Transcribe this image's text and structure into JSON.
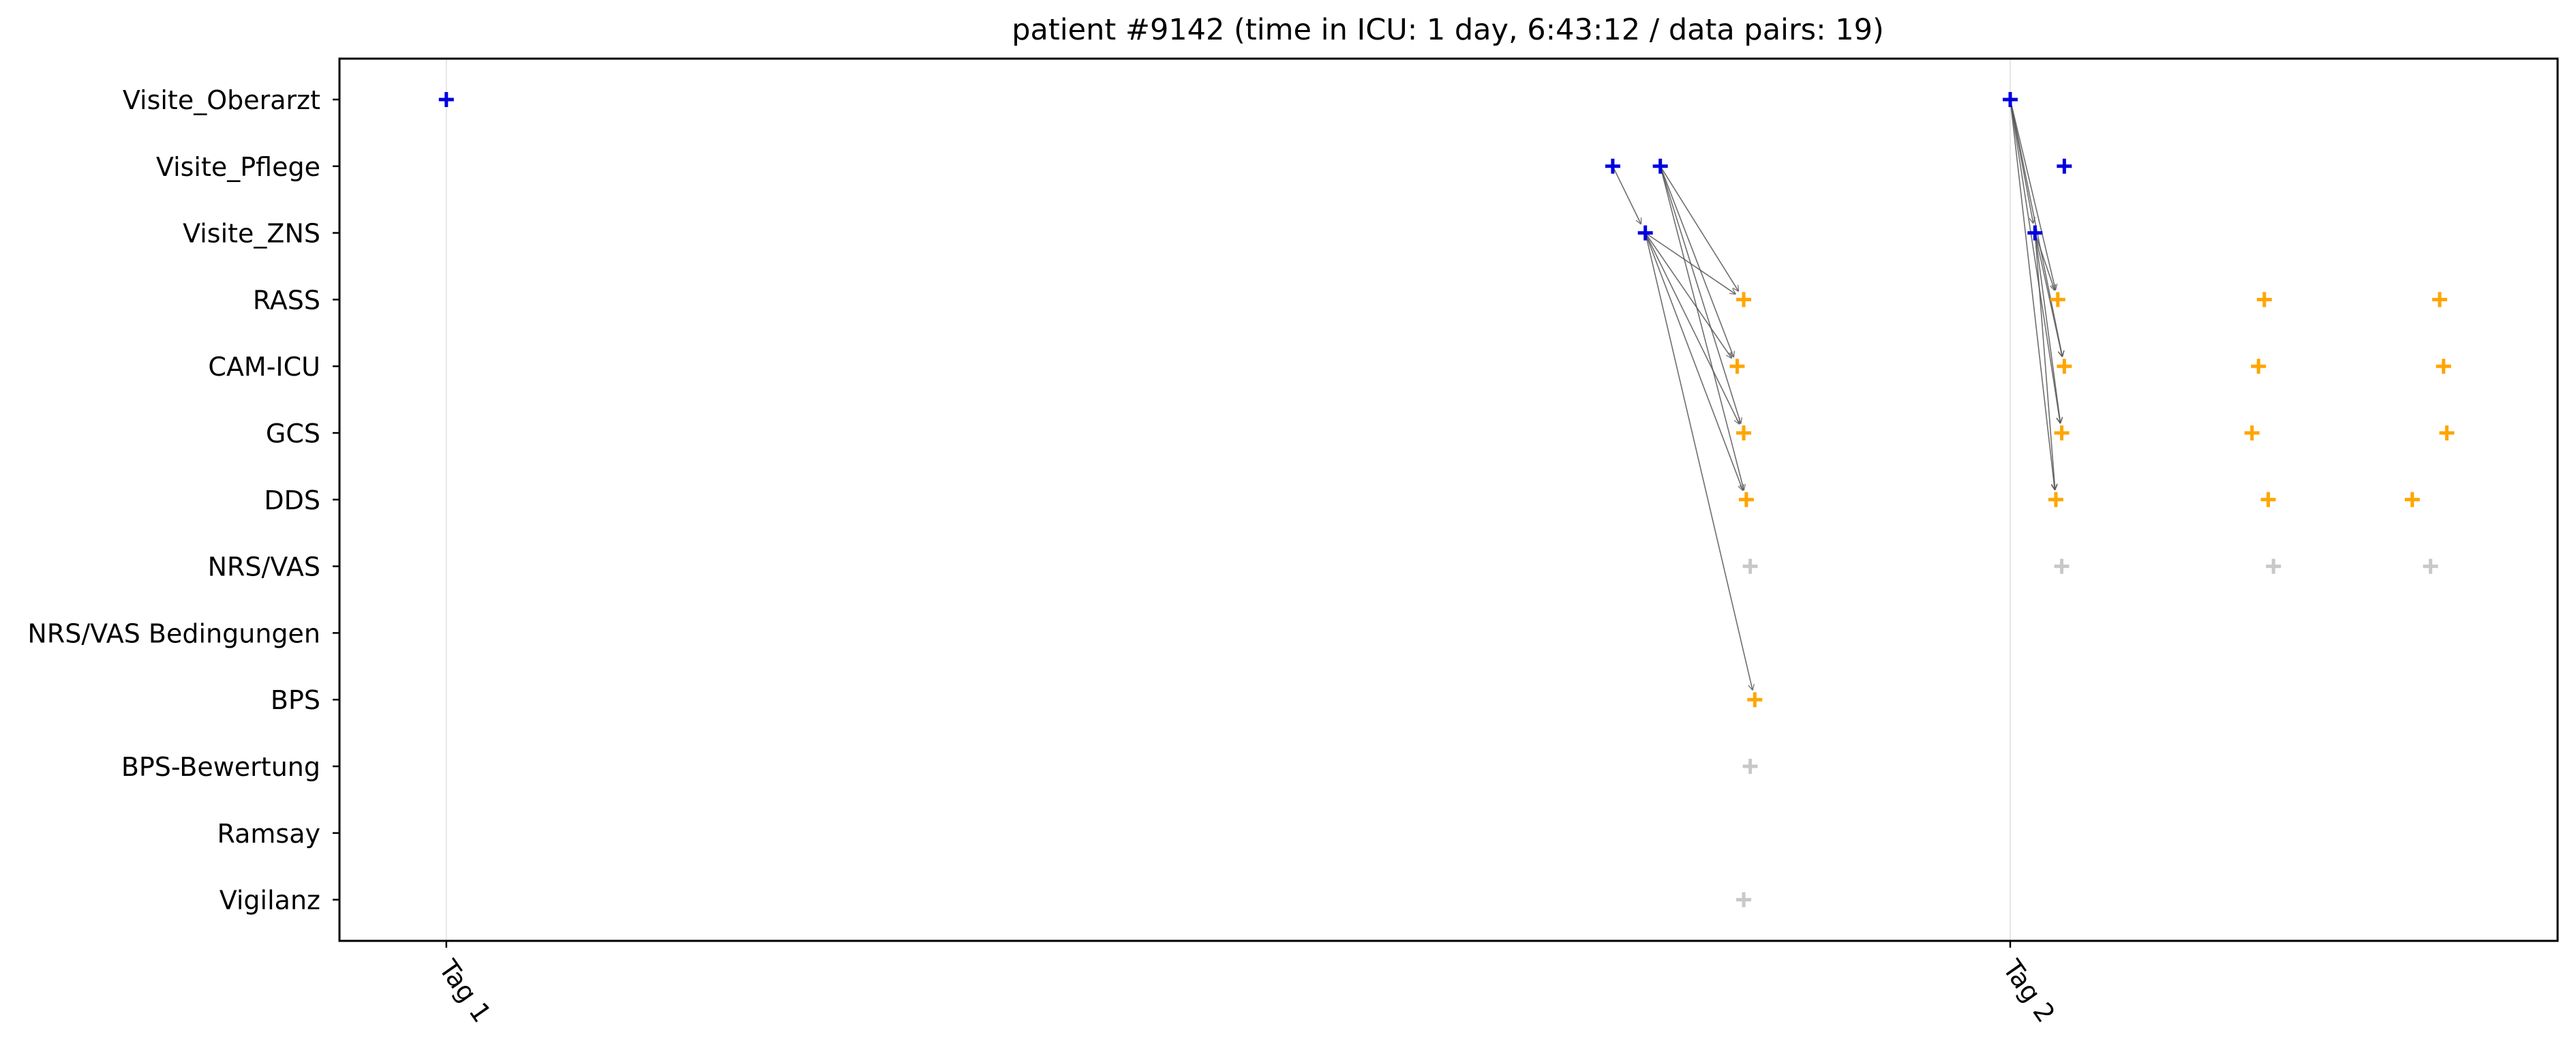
{
  "chart_data": {
    "type": "scatter",
    "title": "patient #9142 (time in ICU: 1 day, 6:43:12 / data pairs: 19)",
    "xlabel": "",
    "ylabel": "",
    "x_unit": "hours",
    "xlim": [
      -1.64,
      32.4
    ],
    "x_ticks": [
      {
        "value": 0,
        "label": "Tag 1"
      },
      {
        "value": 24,
        "label": "Tag 2"
      }
    ],
    "categories": [
      "Visite_Oberarzt",
      "Visite_Pflege",
      "Visite_ZNS",
      "RASS",
      "CAM-ICU",
      "GCS",
      "DDS",
      "NRS/VAS",
      "NRS/VAS Bedingungen",
      "BPS",
      "BPS-Bewertung",
      "Ramsay",
      "Vigilanz"
    ],
    "colors": {
      "visit": "#0000e0",
      "paired_assessment": "#ffa500",
      "other_assessment": "#c8c8c8",
      "arrow": "#555555",
      "gridline": "#e6e6e6"
    },
    "points": [
      {
        "category": "Visite_Oberarzt",
        "x": 0.0,
        "group": "visit"
      },
      {
        "category": "Visite_Oberarzt",
        "x": 24.0,
        "group": "visit"
      },
      {
        "category": "Visite_Pflege",
        "x": 17.9,
        "group": "visit"
      },
      {
        "category": "Visite_Pflege",
        "x": 18.63,
        "group": "visit"
      },
      {
        "category": "Visite_Pflege",
        "x": 24.83,
        "group": "visit"
      },
      {
        "category": "Visite_ZNS",
        "x": 18.4,
        "group": "visit"
      },
      {
        "category": "Visite_ZNS",
        "x": 24.38,
        "group": "visit"
      },
      {
        "category": "RASS",
        "x": 19.91,
        "group": "paired_assessment"
      },
      {
        "category": "RASS",
        "x": 24.73,
        "group": "paired_assessment"
      },
      {
        "category": "RASS",
        "x": 27.9,
        "group": "paired_assessment"
      },
      {
        "category": "RASS",
        "x": 30.59,
        "group": "paired_assessment"
      },
      {
        "category": "CAM-ICU",
        "x": 19.81,
        "group": "paired_assessment"
      },
      {
        "category": "CAM-ICU",
        "x": 24.83,
        "group": "paired_assessment"
      },
      {
        "category": "CAM-ICU",
        "x": 27.81,
        "group": "paired_assessment"
      },
      {
        "category": "CAM-ICU",
        "x": 30.65,
        "group": "paired_assessment"
      },
      {
        "category": "GCS",
        "x": 19.91,
        "group": "paired_assessment"
      },
      {
        "category": "GCS",
        "x": 24.79,
        "group": "paired_assessment"
      },
      {
        "category": "GCS",
        "x": 27.71,
        "group": "paired_assessment"
      },
      {
        "category": "GCS",
        "x": 30.7,
        "group": "paired_assessment"
      },
      {
        "category": "DDS",
        "x": 19.95,
        "group": "paired_assessment"
      },
      {
        "category": "DDS",
        "x": 24.7,
        "group": "paired_assessment"
      },
      {
        "category": "DDS",
        "x": 27.96,
        "group": "paired_assessment"
      },
      {
        "category": "DDS",
        "x": 30.17,
        "group": "paired_assessment"
      },
      {
        "category": "NRS/VAS",
        "x": 20.01,
        "group": "other_assessment"
      },
      {
        "category": "NRS/VAS",
        "x": 24.79,
        "group": "other_assessment"
      },
      {
        "category": "NRS/VAS",
        "x": 28.04,
        "group": "other_assessment"
      },
      {
        "category": "NRS/VAS",
        "x": 30.45,
        "group": "other_assessment"
      },
      {
        "category": "BPS",
        "x": 20.08,
        "group": "paired_assessment"
      },
      {
        "category": "BPS-Bewertung",
        "x": 20.01,
        "group": "other_assessment"
      },
      {
        "category": "Vigilanz",
        "x": 19.91,
        "group": "other_assessment"
      }
    ],
    "pairs": [
      {
        "from": {
          "category": "Visite_Pflege",
          "x": 17.9
        },
        "to": {
          "category": "Visite_ZNS",
          "x": 18.4
        }
      },
      {
        "from": {
          "category": "Visite_Pflege",
          "x": 18.63
        },
        "to": {
          "category": "RASS",
          "x": 19.91
        }
      },
      {
        "from": {
          "category": "Visite_Pflege",
          "x": 18.63
        },
        "to": {
          "category": "CAM-ICU",
          "x": 19.81
        }
      },
      {
        "from": {
          "category": "Visite_Pflege",
          "x": 18.63
        },
        "to": {
          "category": "GCS",
          "x": 19.91
        }
      },
      {
        "from": {
          "category": "Visite_Pflege",
          "x": 18.63
        },
        "to": {
          "category": "DDS",
          "x": 19.95
        }
      },
      {
        "from": {
          "category": "Visite_ZNS",
          "x": 18.4
        },
        "to": {
          "category": "RASS",
          "x": 19.91
        }
      },
      {
        "from": {
          "category": "Visite_ZNS",
          "x": 18.4
        },
        "to": {
          "category": "CAM-ICU",
          "x": 19.81
        }
      },
      {
        "from": {
          "category": "Visite_ZNS",
          "x": 18.4
        },
        "to": {
          "category": "GCS",
          "x": 19.91
        }
      },
      {
        "from": {
          "category": "Visite_ZNS",
          "x": 18.4
        },
        "to": {
          "category": "DDS",
          "x": 19.95
        }
      },
      {
        "from": {
          "category": "Visite_ZNS",
          "x": 18.4
        },
        "to": {
          "category": "BPS",
          "x": 20.08
        }
      },
      {
        "from": {
          "category": "Visite_Oberarzt",
          "x": 24.0
        },
        "to": {
          "category": "Visite_ZNS",
          "x": 24.38
        }
      },
      {
        "from": {
          "category": "Visite_Oberarzt",
          "x": 24.0
        },
        "to": {
          "category": "RASS",
          "x": 24.73
        }
      },
      {
        "from": {
          "category": "Visite_Oberarzt",
          "x": 24.0
        },
        "to": {
          "category": "CAM-ICU",
          "x": 24.83
        }
      },
      {
        "from": {
          "category": "Visite_Oberarzt",
          "x": 24.0
        },
        "to": {
          "category": "GCS",
          "x": 24.79
        }
      },
      {
        "from": {
          "category": "Visite_Oberarzt",
          "x": 24.0
        },
        "to": {
          "category": "DDS",
          "x": 24.7
        }
      },
      {
        "from": {
          "category": "Visite_ZNS",
          "x": 24.38
        },
        "to": {
          "category": "RASS",
          "x": 24.73
        }
      },
      {
        "from": {
          "category": "Visite_ZNS",
          "x": 24.38
        },
        "to": {
          "category": "CAM-ICU",
          "x": 24.83
        }
      },
      {
        "from": {
          "category": "Visite_ZNS",
          "x": 24.38
        },
        "to": {
          "category": "GCS",
          "x": 24.79
        }
      },
      {
        "from": {
          "category": "Visite_ZNS",
          "x": 24.38
        },
        "to": {
          "category": "DDS",
          "x": 24.7
        }
      }
    ],
    "grid": "x-major",
    "legend": "none"
  }
}
